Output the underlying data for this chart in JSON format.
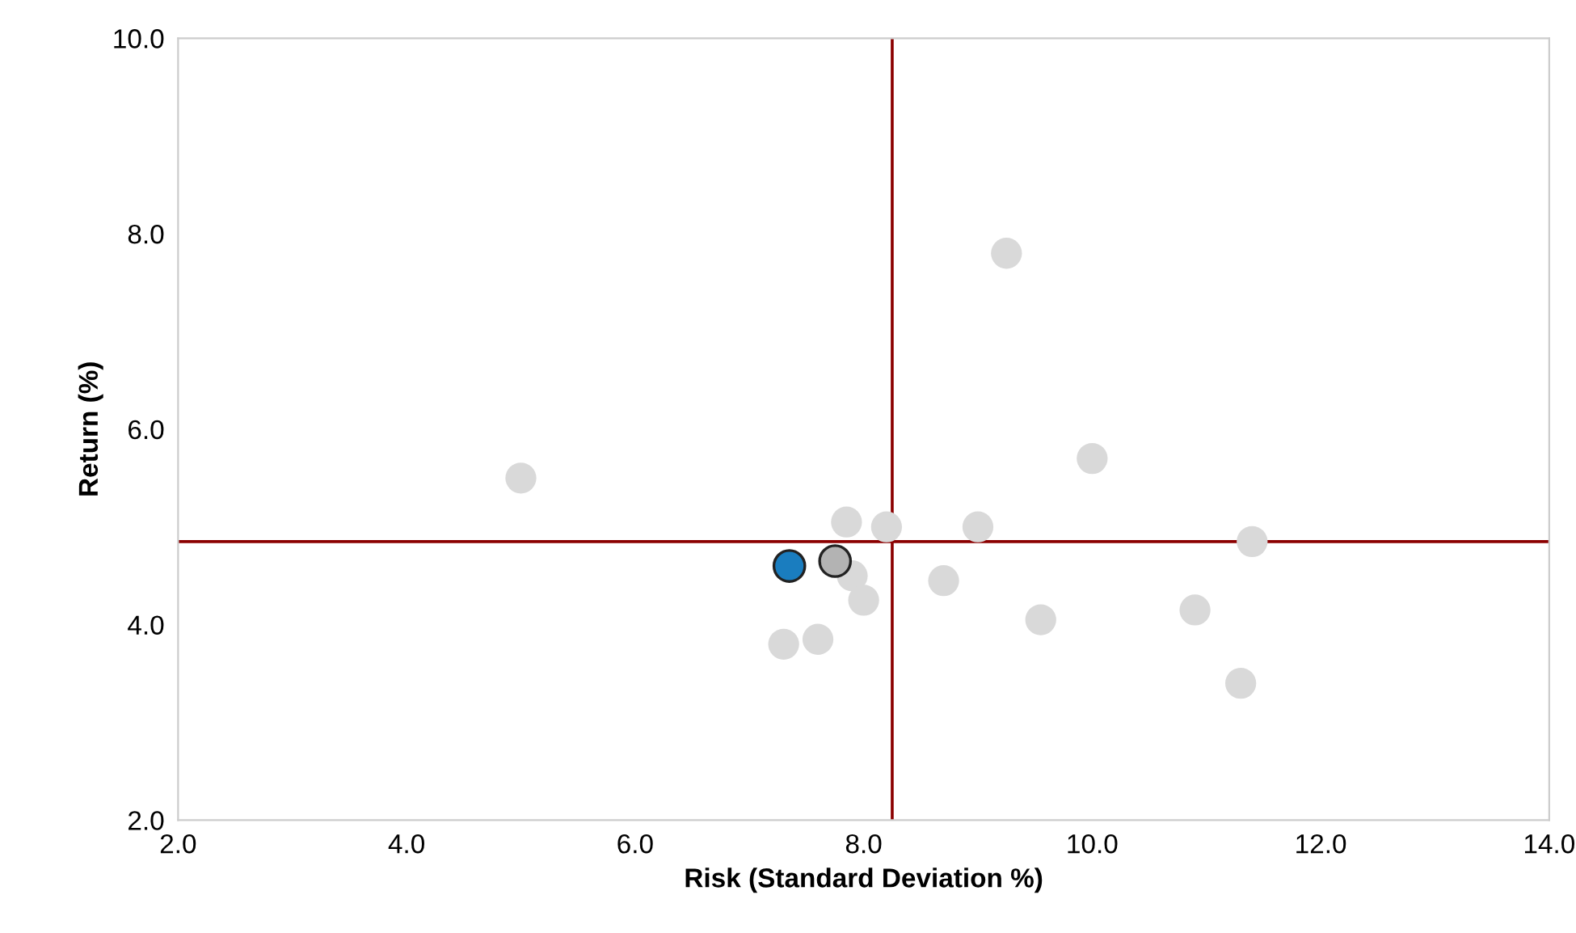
{
  "chart_data": {
    "type": "scatter",
    "xlabel": "Risk (Standard Deviation %)",
    "ylabel": "Return (%)",
    "xlim": [
      2,
      14
    ],
    "ylim": [
      2,
      10
    ],
    "xticks": [
      {
        "value": 2,
        "label": "2.0"
      },
      {
        "value": 4,
        "label": "4.0"
      },
      {
        "value": 6,
        "label": "6.0"
      },
      {
        "value": 8,
        "label": "8.0"
      },
      {
        "value": 10,
        "label": "10.0"
      },
      {
        "value": 12,
        "label": "12.0"
      },
      {
        "value": 14,
        "label": "14.0"
      }
    ],
    "yticks": [
      {
        "value": 2,
        "label": "2.0"
      },
      {
        "value": 4,
        "label": "4.0"
      },
      {
        "value": 6,
        "label": "6.0"
      },
      {
        "value": 8,
        "label": "8.0"
      },
      {
        "value": 10,
        "label": "10.0"
      }
    ],
    "grid": false,
    "marker": "circle",
    "series": [
      {
        "color": "#d9d9d9",
        "x": [
          5.0,
          9.25,
          10.0,
          7.85,
          8.2,
          9.0,
          11.4,
          7.9,
          8.7,
          8.0,
          9.55,
          10.9,
          7.6,
          7.3,
          11.3
        ],
        "values": [
          5.5,
          7.8,
          5.7,
          5.05,
          5.0,
          5.0,
          4.85,
          4.5,
          4.45,
          4.25,
          4.05,
          4.15,
          3.85,
          3.8,
          3.4
        ]
      },
      {
        "color": "#1a7dbf",
        "x": [
          7.35
        ],
        "values": [
          4.6
        ]
      },
      {
        "color": "#b3b3b3",
        "x": [
          7.75
        ],
        "values": [
          4.65
        ]
      }
    ],
    "ref_lines": [
      {
        "axis": "x",
        "value": 8.25,
        "color": "#8b0000"
      },
      {
        "axis": "y",
        "value": 4.85,
        "color": "#8b0000"
      }
    ]
  }
}
